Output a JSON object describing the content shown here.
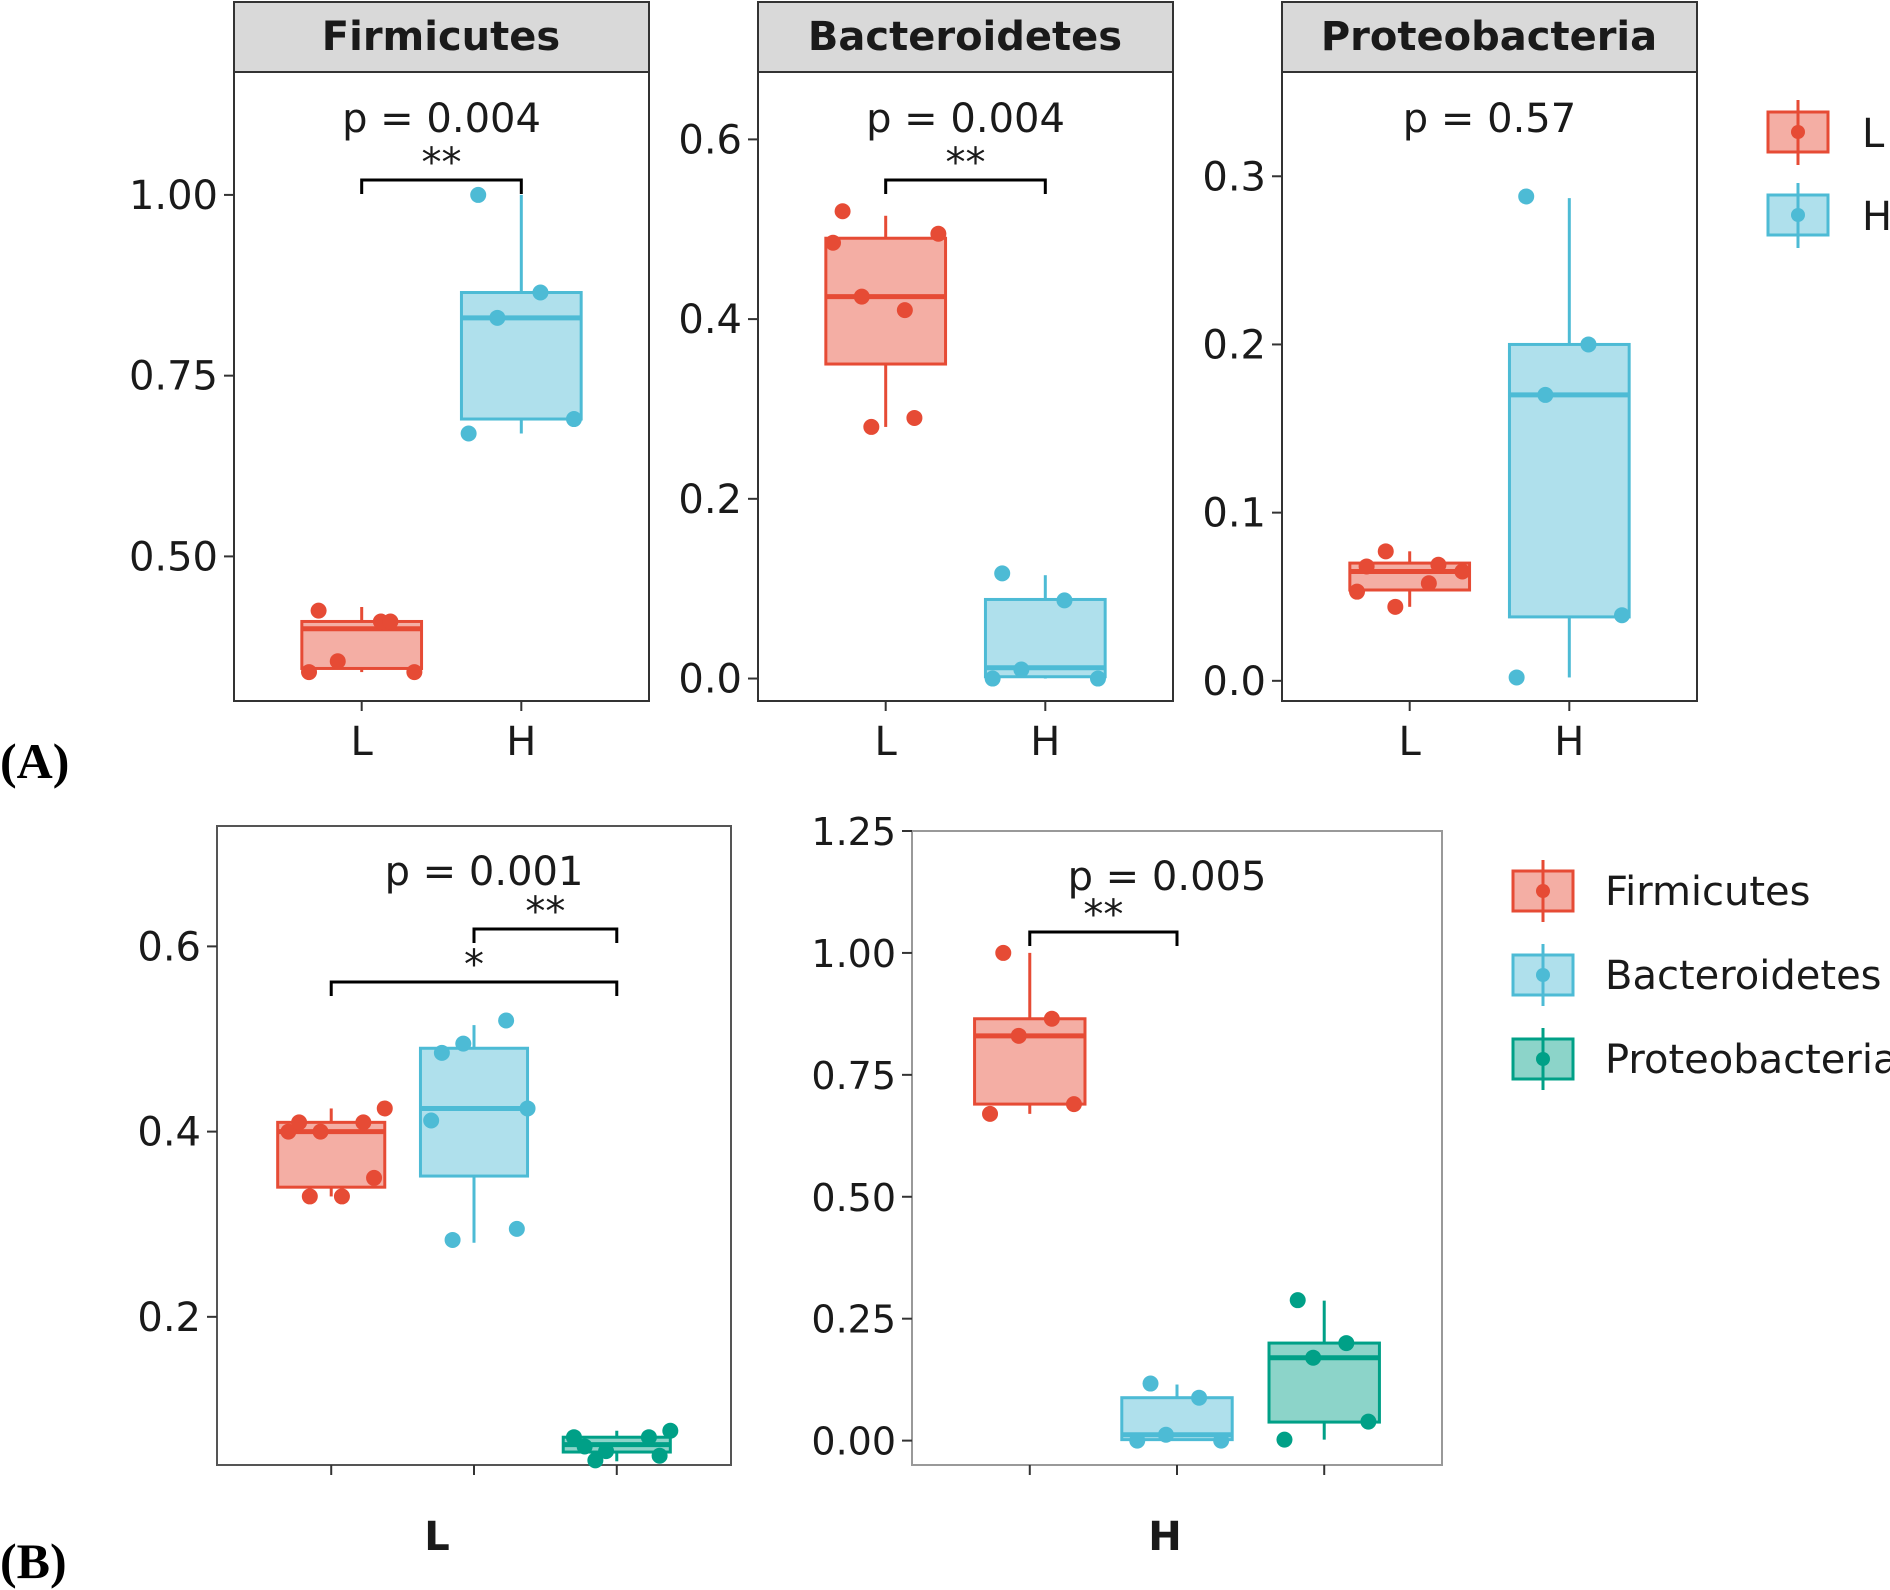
{
  "panel_labels": {
    "a": "(A)",
    "b": "(B)"
  },
  "colors": {
    "L": "#e64b35",
    "H": "#4dbbd5",
    "Firmicutes": "#e64b35",
    "Bacteroidetes": "#4dbbd5",
    "Proteobacteria": "#00a087"
  },
  "legend_a": [
    {
      "key": "L",
      "label": "L"
    },
    {
      "key": "H",
      "label": "H"
    }
  ],
  "legend_b": [
    {
      "key": "Firmicutes",
      "label": "Firmicutes"
    },
    {
      "key": "Bacteroidetes",
      "label": "Bacteroidetes"
    },
    {
      "key": "Proteobacteria",
      "label": "Proteobacteria"
    }
  ],
  "chart_data": [
    {
      "type": "boxplot",
      "panel": "A",
      "title": "Firmicutes",
      "ylim": [
        0.3,
        1.17
      ],
      "yticks": [
        "0.50",
        "0.75",
        "1.00"
      ],
      "categories": [
        "L",
        "H"
      ],
      "p_text": "p = 0.004",
      "sig": [
        {
          "from": "L",
          "to": "H",
          "label": "**"
        }
      ],
      "groups": [
        {
          "name": "L",
          "stats": [
            0.34,
            0.345,
            0.4,
            0.41,
            0.43
          ],
          "points": [
            0.34,
            0.34,
            0.355,
            0.41,
            0.425,
            0.41
          ]
        },
        {
          "name": "H",
          "stats": [
            0.67,
            0.69,
            0.83,
            0.865,
            1.0
          ],
          "points": [
            0.67,
            0.69,
            0.83,
            0.865,
            1.0
          ]
        }
      ]
    },
    {
      "type": "boxplot",
      "panel": "A",
      "title": "Bacteroidetes",
      "ylim": [
        -0.025,
        0.675
      ],
      "yticks": [
        "0.0",
        "0.2",
        "0.4",
        "0.6"
      ],
      "categories": [
        "L",
        "H"
      ],
      "p_text": "p = 0.004",
      "sig": [
        {
          "from": "L",
          "to": "H",
          "label": "**"
        }
      ],
      "groups": [
        {
          "name": "L",
          "stats": [
            0.28,
            0.35,
            0.425,
            0.49,
            0.515
          ],
          "points": [
            0.485,
            0.495,
            0.425,
            0.41,
            0.52,
            0.29,
            0.28
          ]
        },
        {
          "name": "H",
          "stats": [
            0.0,
            0.002,
            0.012,
            0.088,
            0.115
          ],
          "points": [
            0.0,
            0.0,
            0.01,
            0.087,
            0.117
          ]
        }
      ]
    },
    {
      "type": "boxplot",
      "panel": "A",
      "title": "Proteobacteria",
      "ylim": [
        -0.012,
        0.362
      ],
      "yticks": [
        "0.0",
        "0.1",
        "0.2",
        "0.3"
      ],
      "categories": [
        "L",
        "H"
      ],
      "p_text": "p = 0.57",
      "sig": [],
      "groups": [
        {
          "name": "L",
          "stats": [
            0.044,
            0.054,
            0.065,
            0.07,
            0.077
          ],
          "points": [
            0.053,
            0.065,
            0.077,
            0.058,
            0.068,
            0.069,
            0.044
          ]
        },
        {
          "name": "H",
          "stats": [
            0.002,
            0.038,
            0.17,
            0.2,
            0.287
          ],
          "points": [
            0.002,
            0.039,
            0.17,
            0.2,
            0.288
          ]
        }
      ]
    },
    {
      "type": "boxplot",
      "panel": "B",
      "title": "L",
      "ylim": [
        0.04,
        0.73
      ],
      "yticks": [
        "0.2",
        "0.4",
        "0.6"
      ],
      "categories": [
        "Firmicutes",
        "Bacteroidetes",
        "Proteobacteria"
      ],
      "p_text": "p = 0.001",
      "sig": [
        {
          "from": "Bacteroidetes",
          "to": "Proteobacteria",
          "label": "**"
        },
        {
          "from": "Firmicutes",
          "to": "Proteobacteria",
          "label": "*"
        }
      ],
      "groups": [
        {
          "name": "Firmicutes",
          "stats": [
            0.33,
            0.34,
            0.4,
            0.41,
            0.425
          ],
          "points": [
            0.4,
            0.41,
            0.425,
            0.4,
            0.41,
            0.35,
            0.33,
            0.33
          ]
        },
        {
          "name": "Bacteroidetes",
          "stats": [
            0.28,
            0.352,
            0.425,
            0.49,
            0.515
          ],
          "points": [
            0.412,
            0.52,
            0.425,
            0.495,
            0.485,
            0.295,
            0.283
          ]
        },
        {
          "name": "Proteobacteria",
          "stats": [
            0.044,
            0.054,
            0.062,
            0.07,
            0.077
          ],
          "points": [
            0.07,
            0.07,
            0.077,
            0.055,
            0.06,
            0.05,
            0.045
          ]
        }
      ]
    },
    {
      "type": "boxplot",
      "panel": "B",
      "title": "H",
      "ylim": [
        -0.05,
        1.25
      ],
      "yticks": [
        "0.00",
        "0.25",
        "0.50",
        "0.75",
        "1.00",
        "1.25"
      ],
      "categories": [
        "Firmicutes",
        "Bacteroidetes",
        "Proteobacteria"
      ],
      "p_text": "p = 0.005",
      "sig": [
        {
          "from": "Firmicutes",
          "to": "Bacteroidetes",
          "label": "**"
        }
      ],
      "groups": [
        {
          "name": "Firmicutes",
          "stats": [
            0.67,
            0.69,
            0.83,
            0.865,
            1.0
          ],
          "points": [
            0.67,
            0.69,
            0.83,
            0.865,
            1.0
          ]
        },
        {
          "name": "Bacteroidetes",
          "stats": [
            0.0,
            0.002,
            0.012,
            0.088,
            0.115
          ],
          "points": [
            0.0,
            0.0,
            0.012,
            0.088,
            0.117
          ]
        },
        {
          "name": "Proteobacteria",
          "stats": [
            0.002,
            0.038,
            0.17,
            0.2,
            0.287
          ],
          "points": [
            0.002,
            0.039,
            0.17,
            0.2,
            0.288
          ]
        }
      ]
    }
  ]
}
